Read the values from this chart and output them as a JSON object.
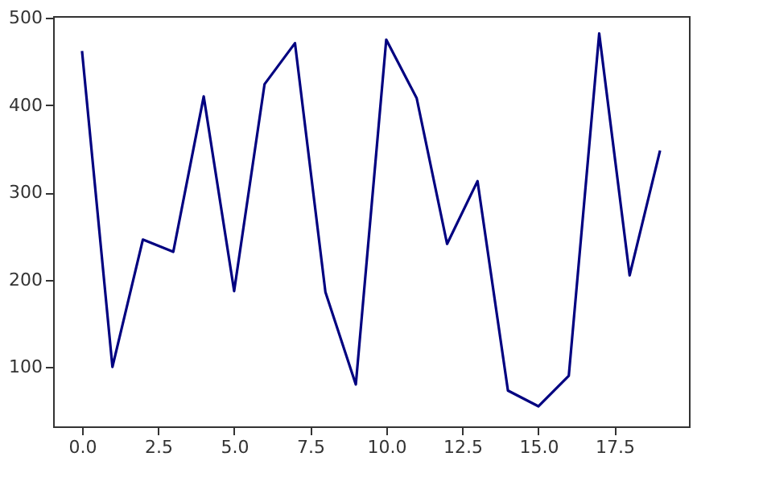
{
  "chart_data": {
    "type": "line",
    "x": [
      0,
      1,
      2,
      3,
      4,
      5,
      6,
      7,
      8,
      9,
      10,
      11,
      12,
      13,
      14,
      15,
      16,
      17,
      18,
      19
    ],
    "series": [
      {
        "color": "#000080",
        "values": [
          462,
          100,
          246,
          232,
          410,
          187,
          424,
          471,
          186,
          80,
          475,
          408,
          241,
          313,
          73,
          55,
          90,
          482,
          205,
          348
        ]
      }
    ],
    "xlim": [
      -0.95,
      19.95
    ],
    "xticks": [
      {
        "value": 0,
        "label": "0.0"
      },
      {
        "value": 2.5,
        "label": "2.5"
      },
      {
        "value": 5,
        "label": "5.0"
      },
      {
        "value": 7.5,
        "label": "7.5"
      },
      {
        "value": 10,
        "label": "10.0"
      },
      {
        "value": 12.5,
        "label": "12.5"
      },
      {
        "value": 15,
        "label": "15.0"
      },
      {
        "value": 17.5,
        "label": "17.5"
      }
    ],
    "ylim": [
      32,
      502
    ],
    "yticks": [
      100,
      200,
      300,
      400,
      500
    ],
    "grid": false,
    "marker": "none",
    "line_style": "solid"
  }
}
